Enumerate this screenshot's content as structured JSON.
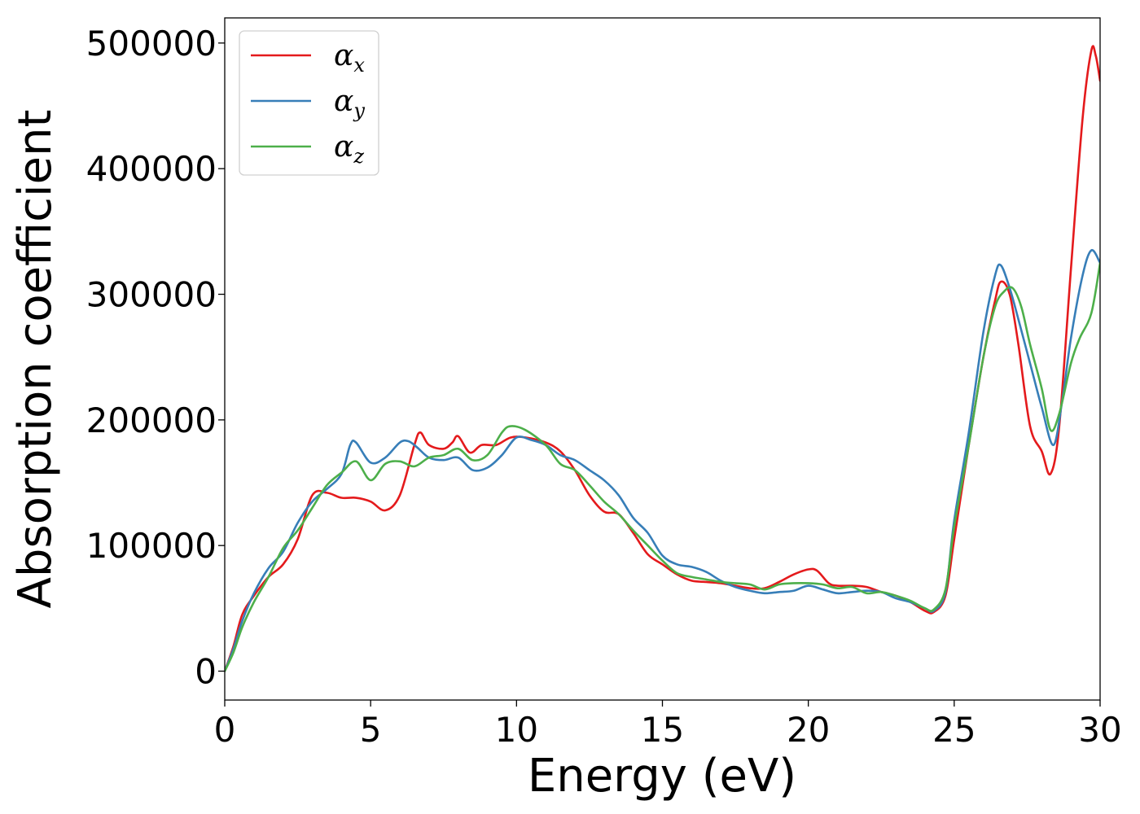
{
  "chart_data": {
    "type": "line",
    "title": "",
    "xlabel": "Energy (eV)",
    "ylabel": "Absorption coefficient",
    "xlim": [
      0,
      30
    ],
    "ylim": [
      -23000,
      520000
    ],
    "xticks": [
      "0",
      "5",
      "10",
      "15",
      "20",
      "25",
      "30"
    ],
    "yticks": [
      "0",
      "100000",
      "200000",
      "300000",
      "400000",
      "500000"
    ],
    "grid": false,
    "legend_position": "top-left",
    "series": [
      {
        "name": "α",
        "subscript": "x",
        "color": "#e41a1c",
        "points": [
          [
            0,
            0
          ],
          [
            0.3,
            20000
          ],
          [
            0.6,
            45000
          ],
          [
            1,
            60000
          ],
          [
            1.5,
            75000
          ],
          [
            2,
            85000
          ],
          [
            2.5,
            105000
          ],
          [
            3,
            140000
          ],
          [
            3.5,
            142000
          ],
          [
            4,
            138000
          ],
          [
            4.5,
            138000
          ],
          [
            5,
            135000
          ],
          [
            5.5,
            128000
          ],
          [
            6,
            140000
          ],
          [
            6.5,
            180000
          ],
          [
            6.7,
            190000
          ],
          [
            7,
            180000
          ],
          [
            7.5,
            177000
          ],
          [
            7.8,
            182000
          ],
          [
            8,
            187000
          ],
          [
            8.4,
            174000
          ],
          [
            8.8,
            180000
          ],
          [
            9.3,
            180000
          ],
          [
            9.8,
            186000
          ],
          [
            10.3,
            186000
          ],
          [
            11,
            182000
          ],
          [
            11.5,
            175000
          ],
          [
            12,
            160000
          ],
          [
            12.5,
            140000
          ],
          [
            13,
            127000
          ],
          [
            13.5,
            125000
          ],
          [
            14,
            110000
          ],
          [
            14.5,
            93000
          ],
          [
            15,
            85000
          ],
          [
            15.5,
            77000
          ],
          [
            16,
            72000
          ],
          [
            16.5,
            71000
          ],
          [
            17,
            70000
          ],
          [
            17.5,
            68000
          ],
          [
            18,
            66000
          ],
          [
            18.5,
            66000
          ],
          [
            19,
            71000
          ],
          [
            19.5,
            77000
          ],
          [
            20,
            81000
          ],
          [
            20.3,
            80000
          ],
          [
            20.7,
            70000
          ],
          [
            21,
            68000
          ],
          [
            21.5,
            68000
          ],
          [
            22,
            67000
          ],
          [
            22.5,
            63000
          ],
          [
            23,
            60000
          ],
          [
            23.5,
            55000
          ],
          [
            24,
            48000
          ],
          [
            24.3,
            47000
          ],
          [
            24.7,
            60000
          ],
          [
            25,
            105000
          ],
          [
            25.5,
            180000
          ],
          [
            26,
            250000
          ],
          [
            26.4,
            295000
          ],
          [
            26.6,
            310000
          ],
          [
            26.9,
            300000
          ],
          [
            27.2,
            260000
          ],
          [
            27.6,
            195000
          ],
          [
            28,
            175000
          ],
          [
            28.3,
            157000
          ],
          [
            28.6,
            195000
          ],
          [
            29,
            320000
          ],
          [
            29.4,
            440000
          ],
          [
            29.7,
            494000
          ],
          [
            29.85,
            490000
          ],
          [
            30,
            470000
          ]
        ]
      },
      {
        "name": "α",
        "subscript": "y",
        "color": "#377eb8",
        "points": [
          [
            0,
            0
          ],
          [
            0.3,
            18000
          ],
          [
            0.6,
            40000
          ],
          [
            1,
            62000
          ],
          [
            1.5,
            82000
          ],
          [
            2,
            95000
          ],
          [
            2.5,
            118000
          ],
          [
            3,
            135000
          ],
          [
            3.5,
            145000
          ],
          [
            4,
            157000
          ],
          [
            4.3,
            180000
          ],
          [
            4.5,
            182000
          ],
          [
            5,
            166000
          ],
          [
            5.5,
            170000
          ],
          [
            6,
            182000
          ],
          [
            6.3,
            183000
          ],
          [
            6.6,
            178000
          ],
          [
            7,
            170000
          ],
          [
            7.5,
            168000
          ],
          [
            8,
            170000
          ],
          [
            8.5,
            160000
          ],
          [
            9,
            162000
          ],
          [
            9.5,
            172000
          ],
          [
            10,
            186000
          ],
          [
            10.5,
            184000
          ],
          [
            11,
            180000
          ],
          [
            11.5,
            172000
          ],
          [
            12,
            168000
          ],
          [
            12.5,
            160000
          ],
          [
            13,
            152000
          ],
          [
            13.5,
            140000
          ],
          [
            14,
            122000
          ],
          [
            14.5,
            110000
          ],
          [
            15,
            92000
          ],
          [
            15.5,
            85000
          ],
          [
            16,
            83000
          ],
          [
            16.5,
            79000
          ],
          [
            17,
            72000
          ],
          [
            17.5,
            67000
          ],
          [
            18,
            64000
          ],
          [
            18.5,
            62000
          ],
          [
            19,
            63000
          ],
          [
            19.5,
            64000
          ],
          [
            20,
            68000
          ],
          [
            20.5,
            65000
          ],
          [
            21,
            62000
          ],
          [
            21.5,
            63000
          ],
          [
            22,
            64000
          ],
          [
            22.5,
            63000
          ],
          [
            23,
            58000
          ],
          [
            23.5,
            55000
          ],
          [
            24,
            50000
          ],
          [
            24.3,
            48000
          ],
          [
            24.7,
            63000
          ],
          [
            25,
            120000
          ],
          [
            25.5,
            190000
          ],
          [
            26,
            270000
          ],
          [
            26.4,
            315000
          ],
          [
            26.6,
            323000
          ],
          [
            26.9,
            305000
          ],
          [
            27.2,
            280000
          ],
          [
            27.6,
            245000
          ],
          [
            28,
            210000
          ],
          [
            28.4,
            180000
          ],
          [
            28.7,
            215000
          ],
          [
            29,
            265000
          ],
          [
            29.4,
            315000
          ],
          [
            29.7,
            335000
          ],
          [
            30,
            325000
          ]
        ]
      },
      {
        "name": "α",
        "subscript": "z",
        "color": "#4daf4a",
        "points": [
          [
            0,
            0
          ],
          [
            0.3,
            15000
          ],
          [
            0.6,
            35000
          ],
          [
            1,
            55000
          ],
          [
            1.5,
            75000
          ],
          [
            2,
            98000
          ],
          [
            2.5,
            112000
          ],
          [
            3,
            130000
          ],
          [
            3.5,
            148000
          ],
          [
            4,
            158000
          ],
          [
            4.5,
            167000
          ],
          [
            5,
            152000
          ],
          [
            5.5,
            165000
          ],
          [
            6,
            167000
          ],
          [
            6.5,
            163000
          ],
          [
            7,
            170000
          ],
          [
            7.5,
            172000
          ],
          [
            8,
            177000
          ],
          [
            8.5,
            168000
          ],
          [
            9,
            172000
          ],
          [
            9.5,
            190000
          ],
          [
            9.8,
            195000
          ],
          [
            10.3,
            192000
          ],
          [
            11,
            180000
          ],
          [
            11.5,
            165000
          ],
          [
            12,
            160000
          ],
          [
            12.5,
            148000
          ],
          [
            13,
            135000
          ],
          [
            13.5,
            125000
          ],
          [
            14,
            112000
          ],
          [
            14.5,
            100000
          ],
          [
            15,
            88000
          ],
          [
            15.5,
            78000
          ],
          [
            16,
            75000
          ],
          [
            16.5,
            73000
          ],
          [
            17,
            71000
          ],
          [
            17.5,
            70000
          ],
          [
            18,
            69000
          ],
          [
            18.5,
            65000
          ],
          [
            19,
            69000
          ],
          [
            19.5,
            70000
          ],
          [
            20,
            70000
          ],
          [
            20.5,
            69000
          ],
          [
            21,
            66000
          ],
          [
            21.5,
            67000
          ],
          [
            22,
            62000
          ],
          [
            22.5,
            63000
          ],
          [
            23,
            60000
          ],
          [
            23.5,
            56000
          ],
          [
            24,
            50000
          ],
          [
            24.3,
            49000
          ],
          [
            24.7,
            65000
          ],
          [
            25,
            115000
          ],
          [
            25.5,
            180000
          ],
          [
            26,
            250000
          ],
          [
            26.4,
            290000
          ],
          [
            26.7,
            302000
          ],
          [
            27,
            305000
          ],
          [
            27.3,
            290000
          ],
          [
            27.6,
            260000
          ],
          [
            28,
            225000
          ],
          [
            28.3,
            192000
          ],
          [
            28.6,
            205000
          ],
          [
            29,
            245000
          ],
          [
            29.3,
            265000
          ],
          [
            29.7,
            285000
          ],
          [
            30,
            325000
          ]
        ]
      }
    ]
  }
}
